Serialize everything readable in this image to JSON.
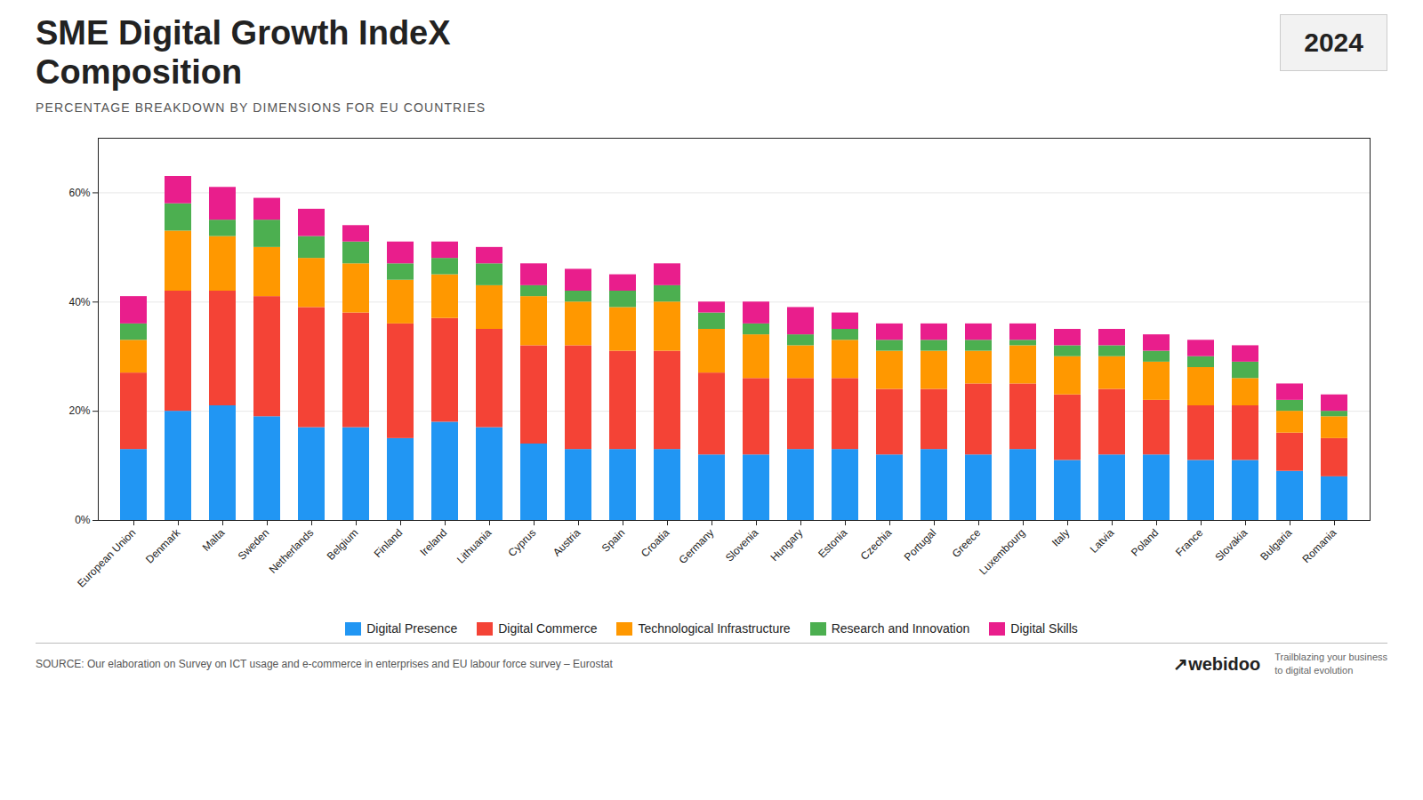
{
  "chart_data": {
    "type": "bar",
    "stacked": true,
    "title": "SME Digital Growth IndeX\nComposition",
    "subtitle": "PERCENTAGE BREAKDOWN BY DIMENSIONS FOR EU COUNTRIES",
    "annotations": [
      "2024",
      "SOURCE: Our elaboration on Survey on ICT usage and e-commerce in enterprises and EU labour force survey – Eurostat",
      "↗webidoo",
      "Trailblazing your business\nto digital evolution"
    ],
    "categories": [
      "European Union",
      "Denmark",
      "Malta",
      "Sweden",
      "Netherlands",
      "Belgium",
      "Finland",
      "Ireland",
      "Lithuania",
      "Cyprus",
      "Austria",
      "Spain",
      "Croatia",
      "Germany",
      "Slovenia",
      "Hungary",
      "Estonia",
      "Czechia",
      "Portugal",
      "Greece",
      "Luxembourg",
      "Italy",
      "Latvia",
      "Poland",
      "France",
      "Slovakia",
      "Bulgaria",
      "Romania"
    ],
    "series": [
      {
        "name": "Digital Presence",
        "color": "#2196f3",
        "values": [
          13.0,
          20.0,
          21.0,
          19.0,
          17.0,
          17.0,
          15.0,
          18.0,
          17.0,
          14.0,
          13.0,
          13.0,
          13.0,
          12.0,
          12.0,
          13.0,
          13.0,
          12.0,
          13.0,
          12.0,
          13.0,
          11.0,
          12.0,
          12.0,
          11.0,
          11.0,
          9.0,
          8.0
        ]
      },
      {
        "name": "Digital Commerce",
        "color": "#f44336",
        "values": [
          14.0,
          22.0,
          21.0,
          22.0,
          22.0,
          21.0,
          21.0,
          19.0,
          18.0,
          18.0,
          19.0,
          18.0,
          18.0,
          15.0,
          14.0,
          13.0,
          13.0,
          12.0,
          11.0,
          13.0,
          12.0,
          12.0,
          12.0,
          10.0,
          10.0,
          10.0,
          7.0,
          7.0
        ]
      },
      {
        "name": "Technological Infrastructure",
        "color": "#ff9800",
        "values": [
          6.0,
          11.0,
          10.0,
          9.0,
          9.0,
          9.0,
          8.0,
          8.0,
          8.0,
          9.0,
          8.0,
          8.0,
          9.0,
          8.0,
          8.0,
          6.0,
          7.0,
          7.0,
          7.0,
          6.0,
          7.0,
          7.0,
          6.0,
          7.0,
          7.0,
          5.0,
          4.0,
          4.0
        ]
      },
      {
        "name": "Research and Innovation",
        "color": "#4caf50",
        "values": [
          3.0,
          5.0,
          3.0,
          5.0,
          4.0,
          4.0,
          3.0,
          3.0,
          4.0,
          2.0,
          2.0,
          3.0,
          3.0,
          3.0,
          2.0,
          2.0,
          2.0,
          2.0,
          2.0,
          2.0,
          1.0,
          2.0,
          2.0,
          2.0,
          2.0,
          3.0,
          2.0,
          1.0
        ]
      },
      {
        "name": "Digital Skills",
        "color": "#e91e8c",
        "values": [
          5.0,
          5.0,
          6.0,
          4.0,
          5.0,
          3.0,
          4.0,
          3.0,
          3.0,
          4.0,
          4.0,
          3.0,
          4.0,
          2.0,
          4.0,
          5.0,
          3.0,
          3.0,
          3.0,
          3.0,
          3.0,
          3.0,
          3.0,
          3.0,
          3.0,
          3.0,
          3.0,
          3.0
        ]
      }
    ],
    "ylim": [
      0,
      70
    ],
    "yticks": [
      {
        "value": 0,
        "label": "0%"
      },
      {
        "value": 20,
        "label": "20%"
      },
      {
        "value": 40,
        "label": "40%"
      },
      {
        "value": 60,
        "label": "60%"
      }
    ],
    "grid": true,
    "legend": "bottom"
  }
}
